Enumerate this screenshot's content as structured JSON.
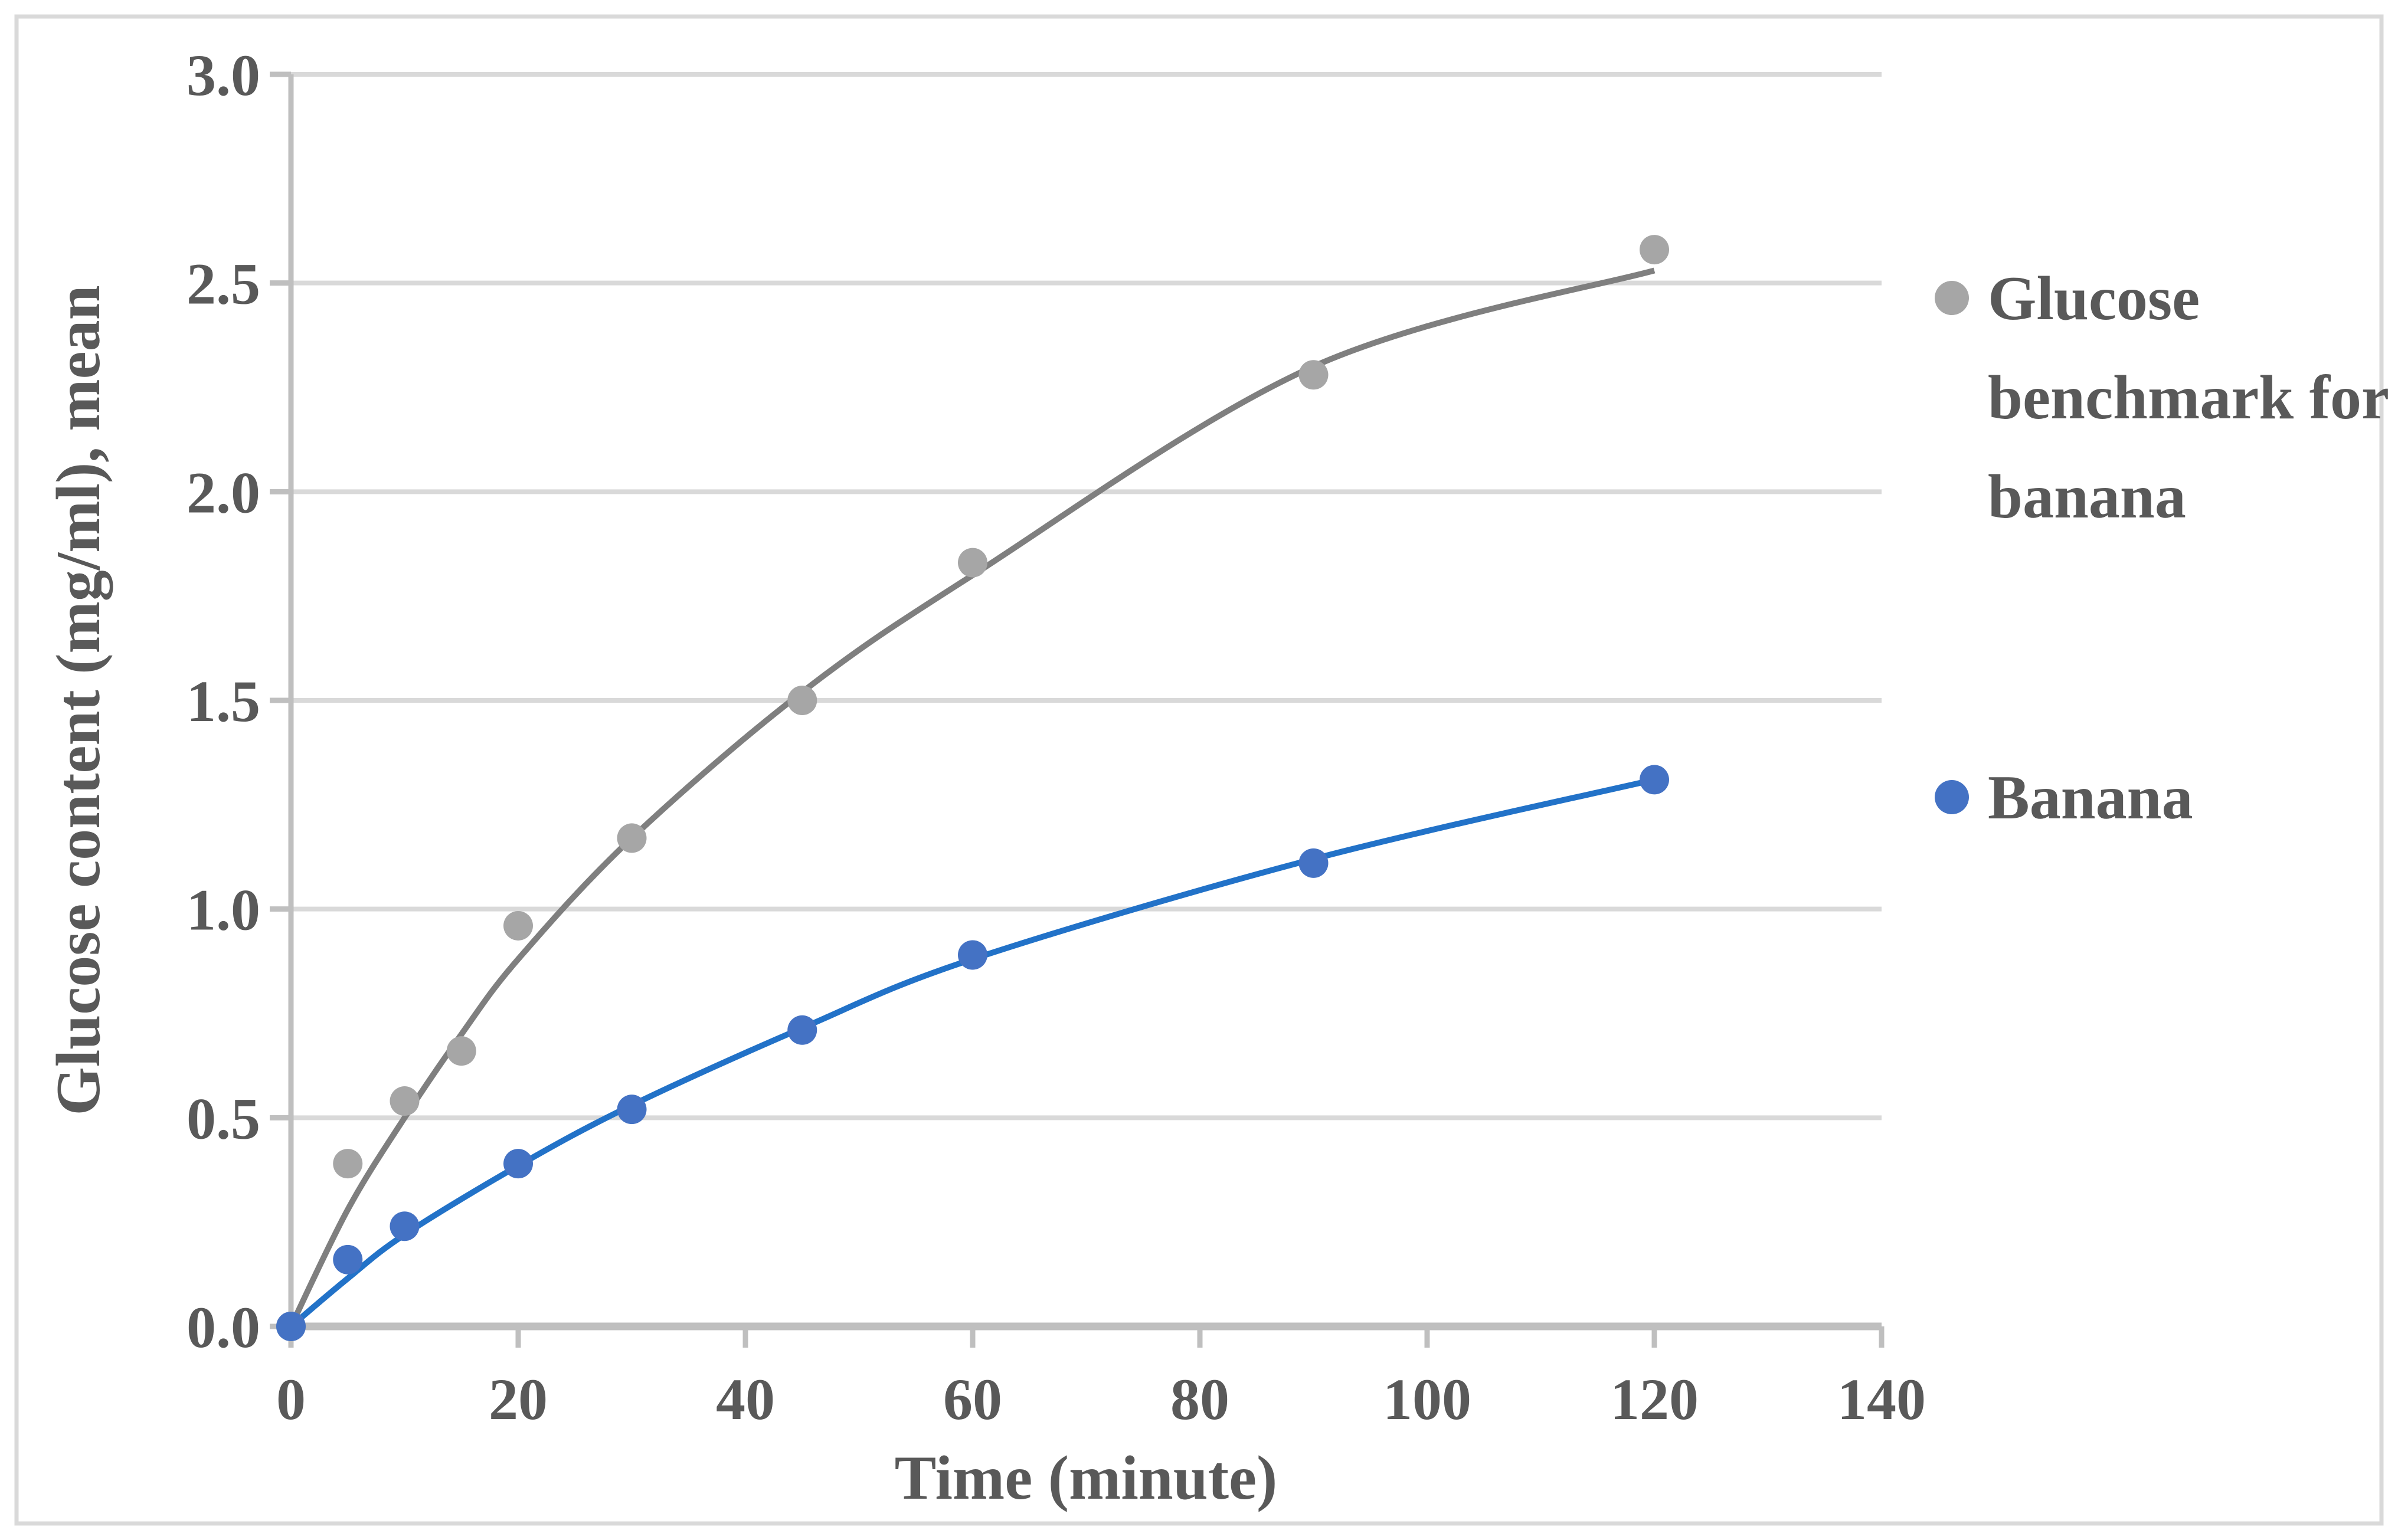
{
  "chart_data": {
    "type": "scatter",
    "title": "",
    "xlabel": "Time (minute)",
    "ylabel": "Glucose content (mg/ml), mean",
    "xlim": [
      0,
      140
    ],
    "ylim": [
      0.0,
      3.0
    ],
    "x_ticks": [
      "0",
      "20",
      "40",
      "60",
      "80",
      "100",
      "120",
      "140"
    ],
    "x_tick_values": [
      0,
      20,
      40,
      60,
      80,
      100,
      120,
      140
    ],
    "y_ticks": [
      "0.0",
      "0.5",
      "1.0",
      "1.5",
      "2.0",
      "2.5",
      "3.0"
    ],
    "y_tick_values": [
      0.0,
      0.5,
      1.0,
      1.5,
      2.0,
      2.5,
      3.0
    ],
    "grid": "horizontal",
    "legend_position": "right",
    "series": [
      {
        "name": "Glucose benchmark for banana",
        "marker_color": "#A6A6A6",
        "line_color": "#7F7F7F",
        "x": [
          0,
          5,
          10,
          15,
          20,
          30,
          45,
          60,
          90,
          120
        ],
        "y": [
          0.0,
          0.39,
          0.54,
          0.66,
          0.96,
          1.17,
          1.5,
          1.83,
          2.28,
          2.58
        ],
        "trend": [
          [
            0,
            0
          ],
          [
            5,
            0.28
          ],
          [
            10,
            0.5
          ],
          [
            15,
            0.7
          ],
          [
            20,
            0.88
          ],
          [
            30,
            1.17
          ],
          [
            45,
            1.52
          ],
          [
            60,
            1.8
          ],
          [
            90,
            2.3
          ],
          [
            120,
            2.53
          ]
        ]
      },
      {
        "name": "Banana",
        "marker_color": "#4472C4",
        "line_color": "#2272C8",
        "x": [
          0,
          5,
          10,
          20,
          30,
          45,
          60,
          90,
          120
        ],
        "y": [
          0.0,
          0.16,
          0.24,
          0.39,
          0.52,
          0.71,
          0.89,
          1.11,
          1.31
        ],
        "trend": [
          [
            0,
            0
          ],
          [
            5,
            0.115
          ],
          [
            10,
            0.22
          ],
          [
            20,
            0.385
          ],
          [
            30,
            0.53
          ],
          [
            45,
            0.715
          ],
          [
            60,
            0.88
          ],
          [
            90,
            1.12
          ],
          [
            120,
            1.31
          ]
        ]
      }
    ],
    "legend": [
      {
        "label": "Glucose benchmark for banana",
        "label_lines": [
          "Glucose",
          "benchmark for",
          "banana"
        ],
        "color": "#A6A6A6"
      },
      {
        "label": "Banana",
        "label_lines": [
          "Banana"
        ],
        "color": "#4472C4"
      }
    ]
  },
  "colors": {
    "text": "#595959",
    "gridline": "#D9D9D9",
    "axis_line": "#BFBFBF",
    "border": "#D9D9D9",
    "background": "#FFFFFF"
  }
}
